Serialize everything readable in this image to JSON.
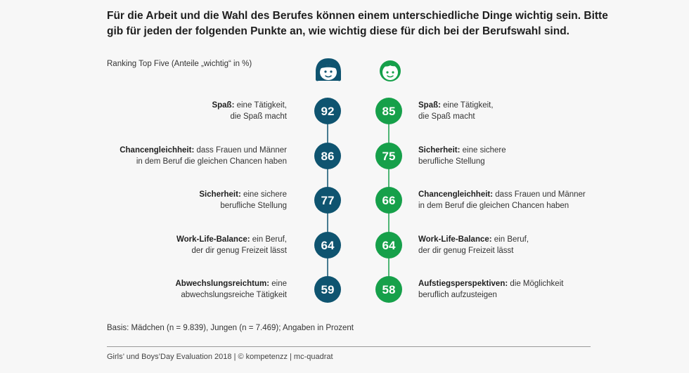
{
  "title": "Für die Arbeit und die Wahl des Berufes können einem unterschiedliche Dinge wichtig sein. Bitte gib für jeden der folgenden Punkte an, wie wichtig diese für dich bei der Berufswahl sind.",
  "subtitle": "Ranking Top Five (Anteile „wichtig“ in %)",
  "basis": "Basis: Mädchen (n = 9.839), Jungen (n = 7.469); Angaben in Prozent",
  "source": "Girls’ und Boys’Day Evaluation 2018 | © kompetenzz | mc-quadrat",
  "colors": {
    "girls": "#0f5470",
    "boys": "#16a04a",
    "girls_line": "#0f5470",
    "boys_line": "#16a04a"
  },
  "icons": {
    "girls": "girl-face-icon",
    "boys": "boy-face-icon"
  },
  "chart_data": {
    "type": "table",
    "title": "Für die Arbeit und die Wahl des Berufes können einem unterschiedliche Dinge wichtig sein. Bitte gib für jeden der folgenden Punkte an, wie wichtig diese für dich bei der Berufswahl sind.",
    "subtitle": "Ranking Top Five (Anteile „wichtig“ in %)",
    "series": [
      {
        "name": "Mädchen",
        "items": [
          {
            "rank": 1,
            "bold": "Spaß:",
            "text": " eine Tätigkeit,",
            "text2": "die Spaß macht",
            "value": 92
          },
          {
            "rank": 2,
            "bold": "Chancengleichheit:",
            "text": " dass Frauen und Männer",
            "text2": "in dem Beruf die gleichen Chancen haben",
            "value": 86
          },
          {
            "rank": 3,
            "bold": "Sicherheit:",
            "text": " eine sichere",
            "text2": "berufliche Stellung",
            "value": 77
          },
          {
            "rank": 4,
            "bold": "Work-Life-Balance:",
            "text": " ein Beruf,",
            "text2": "der dir genug Freizeit lässt",
            "value": 64
          },
          {
            "rank": 5,
            "bold": "Abwechslungsreichtum:",
            "text": " eine",
            "text2": "abwechslungsreiche Tätigkeit",
            "value": 59
          }
        ]
      },
      {
        "name": "Jungen",
        "items": [
          {
            "rank": 1,
            "bold": "Spaß:",
            "text": " eine Tätigkeit,",
            "text2": "die Spaß macht",
            "value": 85
          },
          {
            "rank": 2,
            "bold": "Sicherheit:",
            "text": " eine sichere",
            "text2": "berufliche Stellung",
            "value": 75
          },
          {
            "rank": 3,
            "bold": "Chancengleichheit:",
            "text": " dass Frauen und Männer",
            "text2": "in dem Beruf die gleichen Chancen haben",
            "value": 66
          },
          {
            "rank": 4,
            "bold": "Work-Life-Balance:",
            "text": " ein Beruf,",
            "text2": "der dir genug Freizeit lässt",
            "value": 64
          },
          {
            "rank": 5,
            "bold": "Aufstiegsperspektiven:",
            "text": " die Möglichkeit",
            "text2": "beruflich aufzusteigen",
            "value": 58
          }
        ]
      }
    ]
  }
}
